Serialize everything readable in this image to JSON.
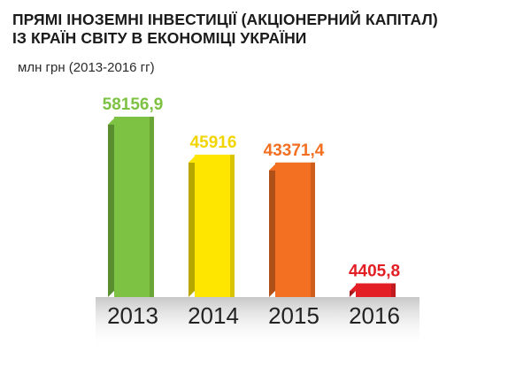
{
  "title_line1": "ПРЯМІ ІНОЗЕМНІ ІНВЕСТИЦІЇ (АКЦІОНЕРНИЙ КАПІТАЛ)",
  "title_line2": "ІЗ КРАЇН СВІТУ В ЕКОНОМІЦІ УКРАЇНИ",
  "subtitle": "млн грн (2013-2016 гг)",
  "chart_data": {
    "type": "bar",
    "categories": [
      "2013",
      "2014",
      "2015",
      "2016"
    ],
    "values": [
      58156.9,
      45916,
      43371.4,
      4405.8
    ],
    "value_labels": [
      "58156,9",
      "45916",
      "43371,4",
      "4405,8"
    ],
    "colors": [
      "#7dc242",
      "#ffe600",
      "#f36f21",
      "#e31e24"
    ],
    "ylim": [
      0,
      60000
    ],
    "grid": false,
    "legend": "none"
  }
}
